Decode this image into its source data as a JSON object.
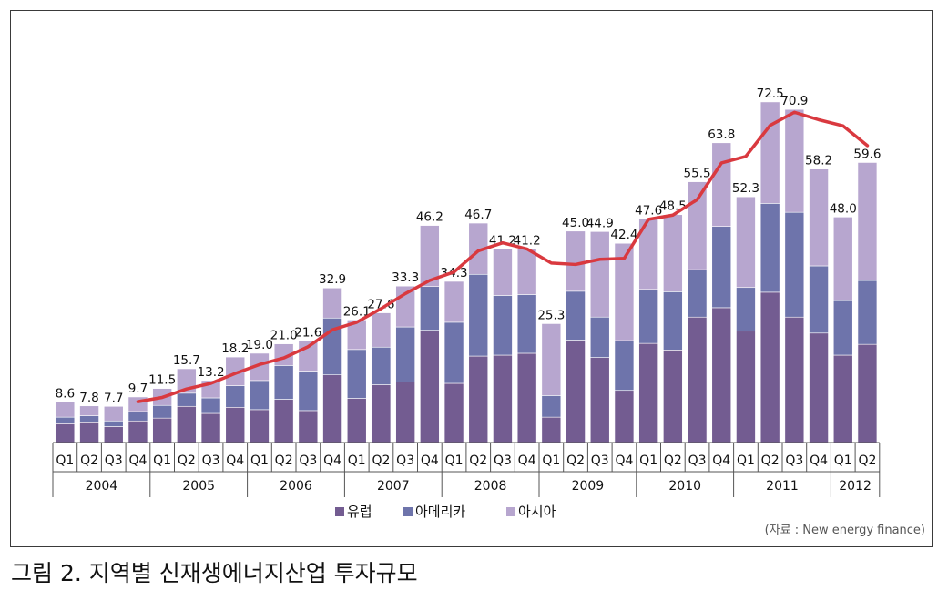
{
  "caption": "그림 2. 지역별 신재생에너지산업 투자규모",
  "source": "(자료 : New energy finance)",
  "colors": {
    "europe": "#735c91",
    "america": "#6e74ab",
    "asia": "#b7a6cf",
    "line": "#d9393f",
    "bar_stroke": "#ffffff"
  },
  "chart_data": {
    "type": "bar",
    "stacked": true,
    "title": "",
    "xlabel": "",
    "ylabel": "",
    "ylim": [
      0,
      78
    ],
    "grid": false,
    "legend_position": "bottom",
    "categories": [
      "Q1",
      "Q2",
      "Q3",
      "Q4",
      "Q1",
      "Q2",
      "Q3",
      "Q4",
      "Q1",
      "Q2",
      "Q3",
      "Q4",
      "Q1",
      "Q2",
      "Q3",
      "Q4",
      "Q1",
      "Q2",
      "Q3",
      "Q4",
      "Q1",
      "Q2",
      "Q3",
      "Q4",
      "Q1",
      "Q2",
      "Q3",
      "Q4",
      "Q1",
      "Q2",
      "Q3",
      "Q4",
      "Q1",
      "Q2"
    ],
    "years": [
      {
        "label": "2004",
        "count": 4
      },
      {
        "label": "2005",
        "count": 4
      },
      {
        "label": "2006",
        "count": 4
      },
      {
        "label": "2007",
        "count": 4
      },
      {
        "label": "2008",
        "count": 4
      },
      {
        "label": "2009",
        "count": 4
      },
      {
        "label": "2010",
        "count": 4
      },
      {
        "label": "2011",
        "count": 4
      },
      {
        "label": "2012",
        "count": 2
      }
    ],
    "totals": [
      "8.6",
      "7.8",
      "7.7",
      "9.7",
      "11.5",
      "15.7",
      "13.2",
      "18.2",
      "19.0",
      "21.0",
      "21.6",
      "32.9",
      "26.1",
      "27.6",
      "33.3",
      "46.2",
      "34.3",
      "46.7",
      "41.2",
      "41.2",
      "25.3",
      "45.0",
      "44.9",
      "42.4",
      "47.6",
      "48.5",
      "55.5",
      "63.8",
      "52.3",
      "72.5",
      "70.9",
      "58.2",
      "48.0",
      "59.6"
    ],
    "series": [
      {
        "name": "유럽",
        "color_key": "europe",
        "values": [
          4.0,
          4.4,
          3.4,
          4.6,
          5.2,
          7.7,
          6.2,
          7.5,
          7.0,
          9.2,
          6.8,
          14.4,
          9.4,
          12.3,
          12.9,
          23.9,
          12.6,
          18.4,
          18.6,
          19.0,
          5.4,
          21.8,
          18.1,
          11.1,
          21.1,
          19.7,
          26.7,
          28.7,
          23.7,
          32.0,
          26.7,
          23.3,
          18.6,
          20.9
        ]
      },
      {
        "name": "아메리카",
        "color_key": "america",
        "values": [
          1.4,
          1.3,
          1.2,
          2.0,
          2.7,
          2.8,
          3.3,
          4.6,
          6.2,
          7.2,
          8.4,
          12.1,
          10.4,
          8.0,
          11.7,
          9.3,
          13.0,
          17.4,
          12.7,
          12.5,
          4.6,
          10.4,
          8.6,
          10.6,
          11.5,
          12.4,
          10.1,
          17.3,
          9.3,
          18.9,
          22.3,
          14.3,
          11.6,
          13.6
        ]
      },
      {
        "name": "아시아",
        "color_key": "asia",
        "values": [
          3.2,
          2.1,
          3.1,
          3.1,
          3.6,
          5.2,
          3.7,
          6.1,
          5.8,
          4.6,
          6.4,
          6.4,
          6.3,
          7.3,
          8.7,
          13.0,
          8.7,
          10.9,
          9.9,
          9.7,
          15.3,
          12.8,
          18.2,
          20.7,
          15.0,
          16.4,
          18.7,
          17.8,
          19.3,
          21.6,
          21.9,
          20.6,
          17.8,
          25.1
        ]
      }
    ],
    "line": {
      "start_index": 3,
      "values": [
        8.7,
        9.6,
        11.4,
        12.6,
        14.7,
        16.6,
        18.0,
        20.4,
        24.0,
        25.6,
        28.5,
        31.7,
        34.5,
        36.3,
        40.8,
        42.5,
        41.2,
        38.2,
        37.9,
        39.0,
        39.2,
        47.5,
        48.4,
        51.7,
        59.5,
        60.9,
        67.5,
        70.3,
        68.7,
        67.4,
        63.2
      ]
    }
  }
}
